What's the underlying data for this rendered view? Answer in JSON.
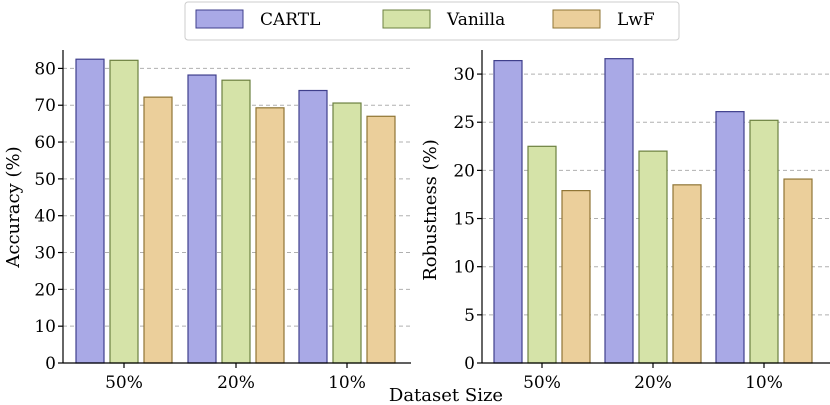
{
  "legend": {
    "entries": [
      {
        "name": "CARTL",
        "fill": "#a9a9e6",
        "stroke": "#3f3f8c"
      },
      {
        "name": "Vanilla",
        "fill": "#d5e3a8",
        "stroke": "#6c8040"
      },
      {
        "name": "LwF",
        "fill": "#ebcf9b",
        "stroke": "#8f7535"
      }
    ]
  },
  "shared_xlabel": "Dataset Size",
  "chart_data": [
    {
      "type": "bar",
      "categories": [
        "50%",
        "20%",
        "10%"
      ],
      "series": [
        {
          "name": "CARTL",
          "values": [
            82.5,
            78.2,
            74.0
          ]
        },
        {
          "name": "Vanilla",
          "values": [
            82.2,
            76.8,
            70.6
          ]
        },
        {
          "name": "LwF",
          "values": [
            72.2,
            69.3,
            67.0
          ]
        }
      ],
      "ylabel": "Accuracy (%)",
      "ylim": [
        0,
        85
      ],
      "yticks": [
        0,
        10,
        20,
        30,
        40,
        50,
        60,
        70,
        80
      ],
      "grid": "horizontal dashed"
    },
    {
      "type": "bar",
      "categories": [
        "50%",
        "20%",
        "10%"
      ],
      "series": [
        {
          "name": "CARTL",
          "values": [
            31.4,
            31.6,
            26.1
          ]
        },
        {
          "name": "Vanilla",
          "values": [
            22.5,
            22.0,
            25.2
          ]
        },
        {
          "name": "LwF",
          "values": [
            17.9,
            18.5,
            19.1
          ]
        }
      ],
      "ylabel": "Robustness (%)",
      "ylim": [
        0,
        32.5
      ],
      "yticks": [
        0,
        5,
        10,
        15,
        20,
        25,
        30
      ],
      "grid": "horizontal dashed"
    }
  ]
}
